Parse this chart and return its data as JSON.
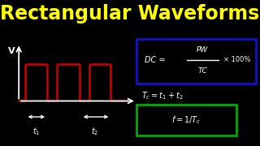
{
  "title": "Rectangular Waveforms",
  "title_color": "#FFFF00",
  "title_fontsize": 17,
  "bg_color": "#000000",
  "wave_color": "#CC0000",
  "axis_color": "#FFFFFF",
  "text_color": "#FFFFFF",
  "divider_color": "#FFFFFF",
  "box1_color": "#1111CC",
  "box2_color": "#00AA00",
  "label_v": "V",
  "label_t1": "$t_1$",
  "label_t2": "$t_2$",
  "dc_left": "DC = ",
  "dc_num": "PW",
  "dc_den": "TC",
  "dc_right": "× 100%",
  "tc_eq": "$T_c = t_1 + t_2$",
  "f_eq": "$f = 1/T_c$"
}
